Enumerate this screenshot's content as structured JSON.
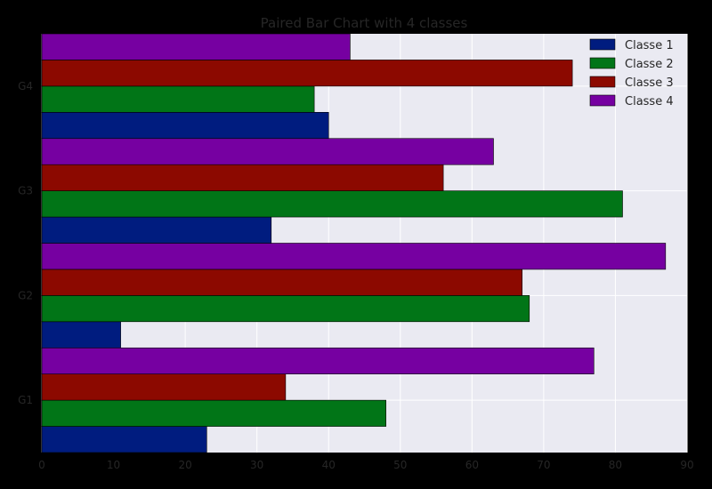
{
  "chart_data": {
    "type": "bar",
    "orientation": "horizontal",
    "title": "Paired Bar Chart with 4 classes",
    "xlabel": "",
    "ylabel": "",
    "categories": [
      "G1",
      "G2",
      "G3",
      "G4"
    ],
    "series": [
      {
        "name": "Classe 1",
        "color": "#001c7f",
        "values": [
          23,
          11,
          32,
          40
        ]
      },
      {
        "name": "Classe 2",
        "color": "#017517",
        "values": [
          48,
          68,
          81,
          38
        ]
      },
      {
        "name": "Classe 3",
        "color": "#8c0900",
        "values": [
          34,
          67,
          56,
          74
        ]
      },
      {
        "name": "Classe 4",
        "color": "#7600a1",
        "values": [
          77,
          87,
          63,
          43
        ]
      }
    ],
    "xlim": [
      0,
      90
    ],
    "xticks": [
      0,
      10,
      20,
      30,
      40,
      50,
      60,
      70,
      80,
      90
    ],
    "grid": true,
    "legend_position": "top-right",
    "colors": {
      "figure_background": "#000000",
      "plot_background": "#eaeaf2",
      "grid": "#ffffff",
      "text": "#262626"
    }
  }
}
